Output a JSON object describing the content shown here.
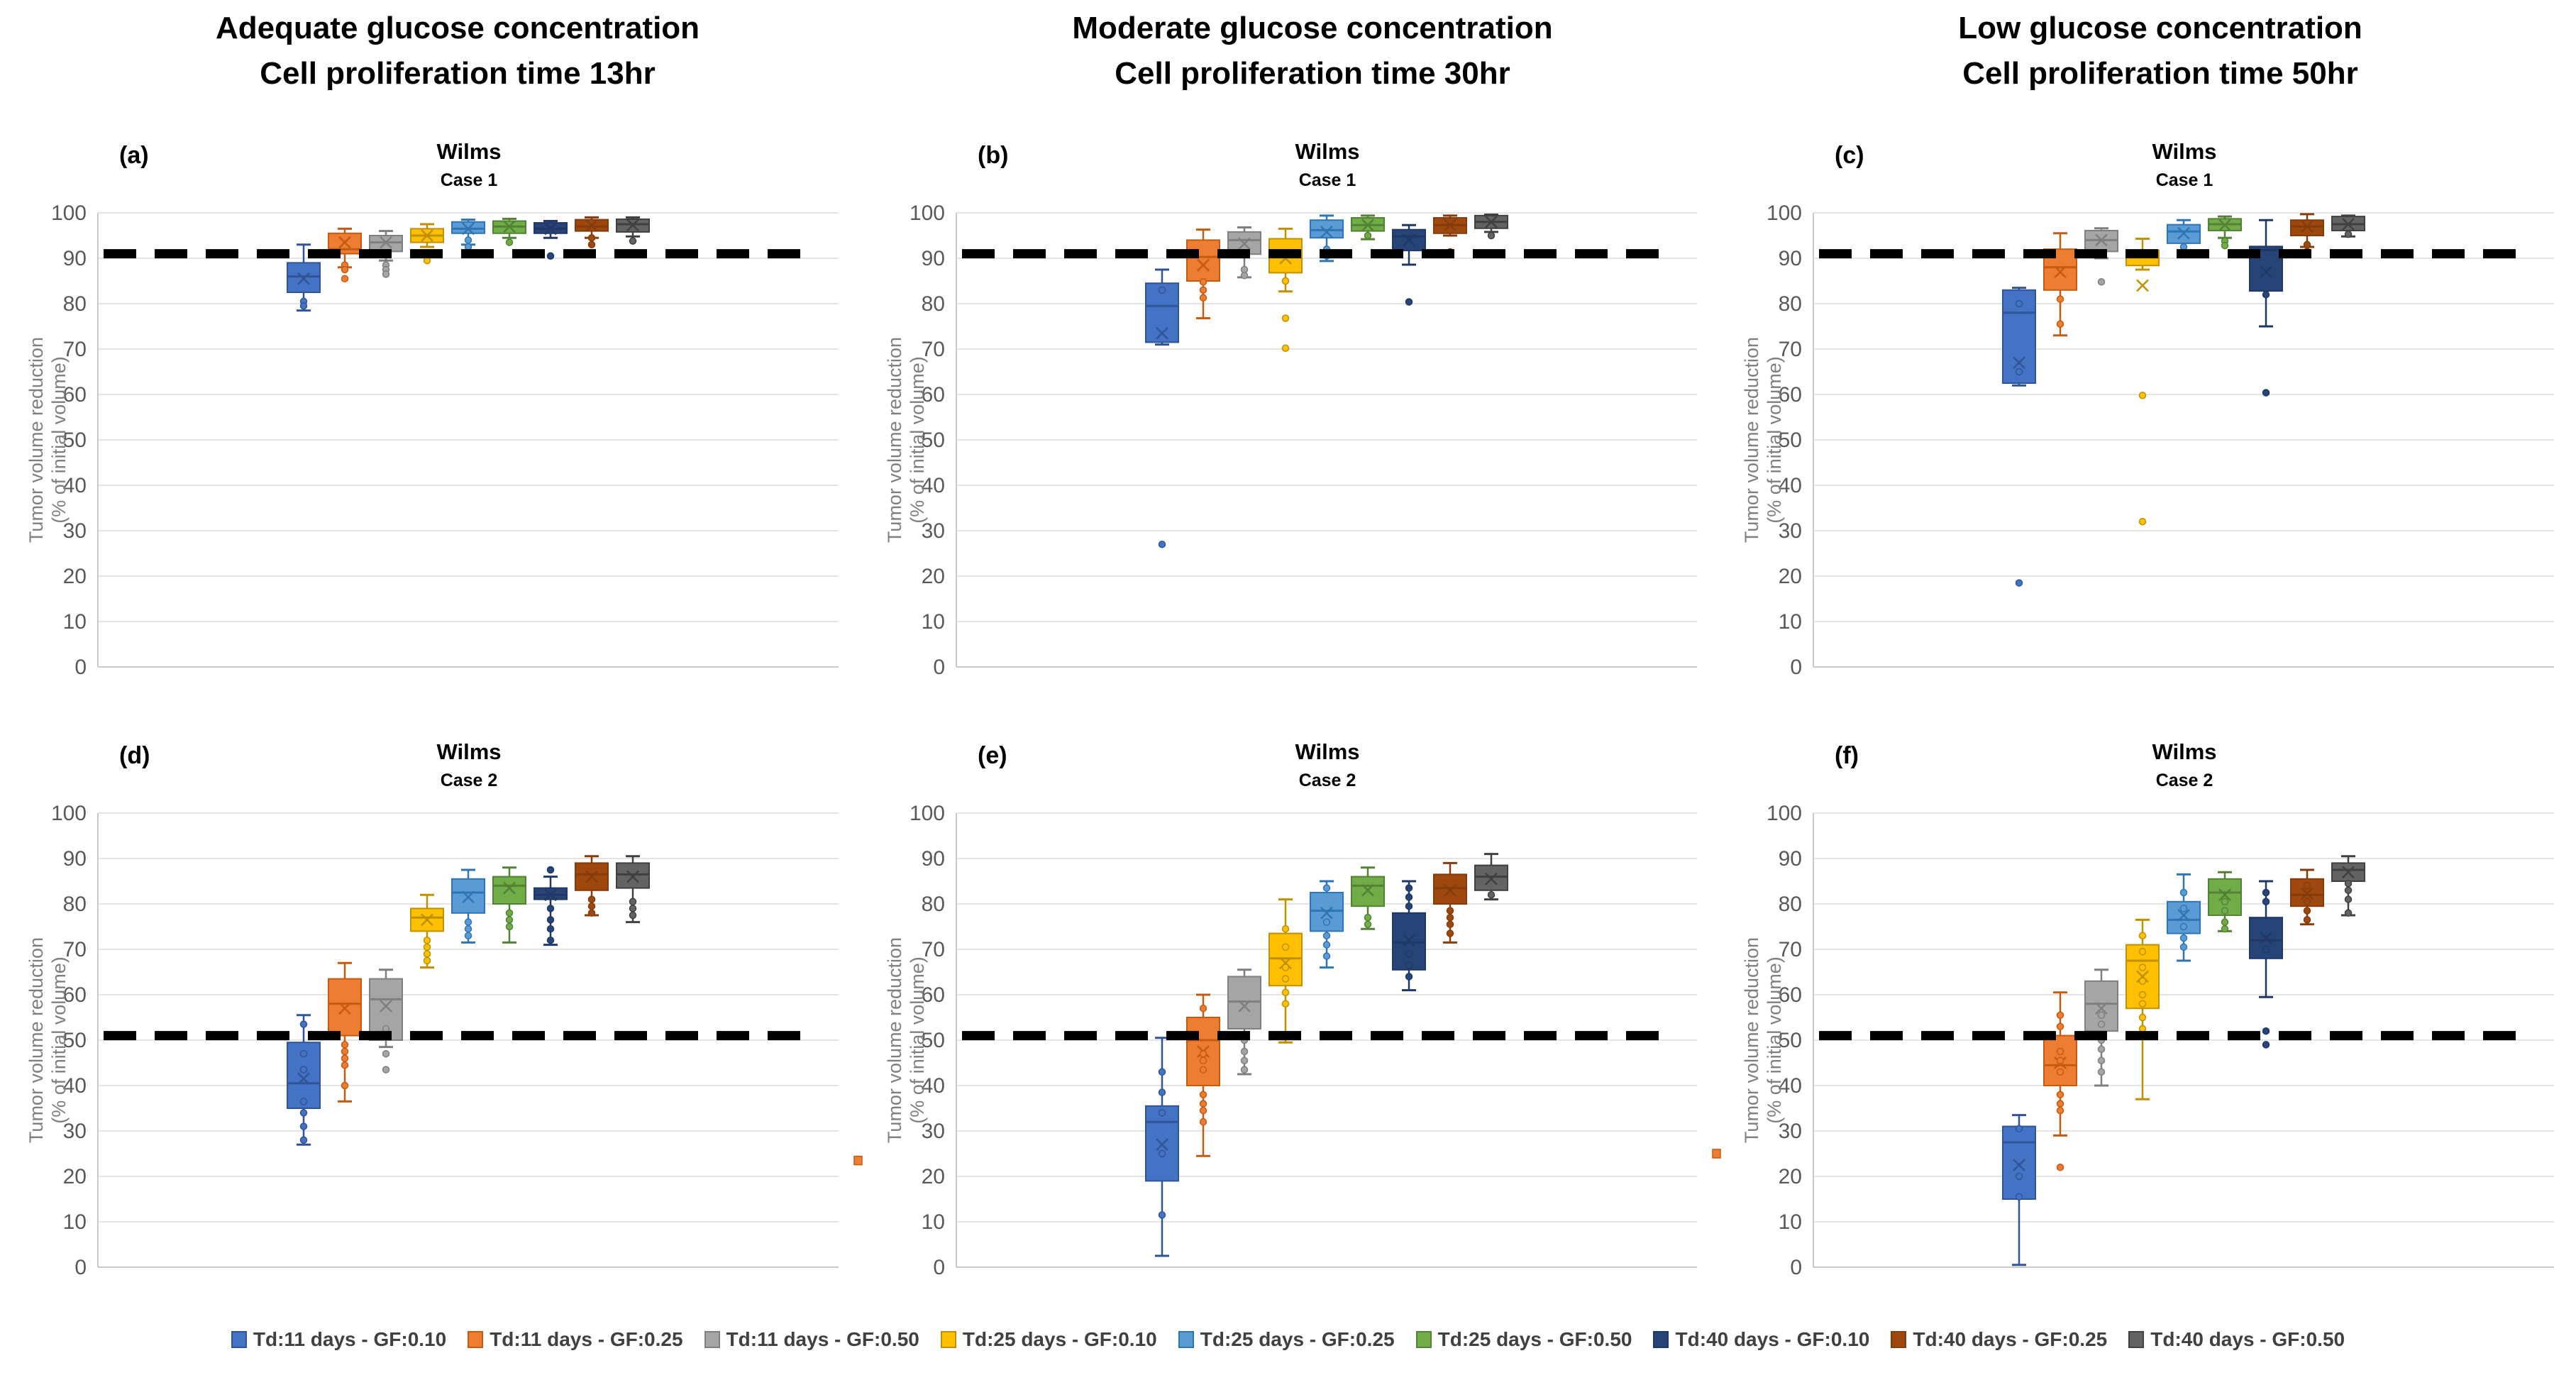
{
  "column_headers": [
    {
      "line1": "Adequate glucose concentration",
      "line2": "Cell proliferation time 13hr"
    },
    {
      "line1": "Moderate glucose concentration",
      "line2": "Cell proliferation time 30hr"
    },
    {
      "line1": "Low glucose concentration",
      "line2": "Cell proliferation time 50hr"
    }
  ],
  "axis": {
    "ylabel_line1": "Tumor volume reduction",
    "ylabel_line2": "(% of initial volume)",
    "ymin": 0,
    "ymax": 100,
    "ytick_step": 10
  },
  "series": [
    {
      "name": "Td:11 days - GF:0.10",
      "fill": "#4472C4",
      "border": "#2F5597"
    },
    {
      "name": "Td:11 days - GF:0.25",
      "fill": "#ED7D31",
      "border": "#C55A11"
    },
    {
      "name": "Td:11 days - GF:0.50",
      "fill": "#A5A5A5",
      "border": "#7F7F7F"
    },
    {
      "name": "Td:25 days - GF:0.10",
      "fill": "#FFC000",
      "border": "#BF9000"
    },
    {
      "name": "Td:25 days - GF:0.25",
      "fill": "#5B9BD5",
      "border": "#2E75B6"
    },
    {
      "name": "Td:25 days - GF:0.50",
      "fill": "#70AD47",
      "border": "#538135"
    },
    {
      "name": "Td:40 days - GF:0.10",
      "fill": "#264478",
      "border": "#1F3864"
    },
    {
      "name": "Td:40 days - GF:0.25",
      "fill": "#9E480E",
      "border": "#843C0C"
    },
    {
      "name": "Td:40 days - GF:0.50",
      "fill": "#636363",
      "border": "#404040"
    }
  ],
  "chart_data": {
    "type": "boxplot-grid",
    "grid": {
      "rows": 2,
      "cols": 3,
      "gridlines": true,
      "legend_position": "bottom"
    },
    "panels": [
      {
        "id": "a",
        "label": "(a)",
        "title": "Wilms",
        "subtitle": "Case 1",
        "threshold": 91,
        "stray_point": null,
        "boxes": [
          {
            "low": 78.5,
            "q1": 82.5,
            "median": 86,
            "q3": 89,
            "high": 93,
            "mean": 85.5,
            "points": [
              80.5,
              79.5
            ]
          },
          {
            "low": 88,
            "q1": 91,
            "median": 92,
            "q3": 95.5,
            "high": 96.5,
            "mean": 93.5,
            "points": [
              88.5,
              87.5,
              85.5
            ]
          },
          {
            "low": 89.5,
            "q1": 91.5,
            "median": 93.5,
            "q3": 95,
            "high": 96,
            "mean": 93.5,
            "points": [
              88.5,
              87.5,
              86.5
            ]
          },
          {
            "low": 92.5,
            "q1": 93.5,
            "median": 95,
            "q3": 96.5,
            "high": 97.5,
            "mean": 95,
            "points": [
              89.5
            ]
          },
          {
            "low": 93,
            "q1": 95.5,
            "median": 96.5,
            "q3": 98,
            "high": 98.5,
            "mean": 96.5,
            "points": [
              94,
              92.5
            ]
          },
          {
            "low": 94.5,
            "q1": 95.5,
            "median": 97,
            "q3": 98.2,
            "high": 98.7,
            "mean": 97,
            "points": [
              93.5
            ]
          },
          {
            "low": 94.5,
            "q1": 95.5,
            "median": 96.5,
            "q3": 97.8,
            "high": 98.2,
            "mean": 96.5,
            "points": [
              90.5
            ]
          },
          {
            "low": 94.5,
            "q1": 96,
            "median": 97,
            "q3": 98.5,
            "high": 99,
            "mean": 97.2,
            "points": [
              94.5,
              93
            ]
          },
          {
            "low": 94.8,
            "q1": 95.8,
            "median": 97.5,
            "q3": 98.6,
            "high": 99,
            "mean": 97.3,
            "points": [
              93.8
            ]
          }
        ]
      },
      {
        "id": "b",
        "label": "(b)",
        "title": "Wilms",
        "subtitle": "Case 1",
        "threshold": 91,
        "stray_point": null,
        "boxes": [
          {
            "low": 71,
            "q1": 71.5,
            "median": 79.5,
            "q3": 84.5,
            "high": 87.5,
            "mean": 73.5,
            "points": [
              83,
              27
            ]
          },
          {
            "low": 76.8,
            "q1": 85,
            "median": 90.3,
            "q3": 94,
            "high": 96.3,
            "mean": 88.5,
            "points": [
              84.8,
              83,
              81.3
            ]
          },
          {
            "low": 85.8,
            "q1": 90.9,
            "median": 94,
            "q3": 95.8,
            "high": 96.8,
            "mean": 93.2,
            "points": [
              87.5,
              86.2
            ]
          },
          {
            "low": 82.7,
            "q1": 86.8,
            "median": 90.6,
            "q3": 94.3,
            "high": 96.5,
            "mean": 90,
            "points": [
              85,
              76.8,
              70.2
            ]
          },
          {
            "low": 89.4,
            "q1": 94.5,
            "median": 96.2,
            "q3": 98.4,
            "high": 99.4,
            "mean": 95.8,
            "points": [
              92,
              90.5
            ]
          },
          {
            "low": 94.2,
            "q1": 96,
            "median": 97.3,
            "q3": 98.9,
            "high": 99.4,
            "mean": 97.3,
            "points": [
              95
            ]
          },
          {
            "low": 88.6,
            "q1": 91.7,
            "median": 94.8,
            "q3": 96.3,
            "high": 97.3,
            "mean": 94,
            "points": [
              80.4
            ]
          },
          {
            "low": 95,
            "q1": 95.5,
            "median": 97.3,
            "q3": 98.9,
            "high": 99.4,
            "mean": 97.3,
            "points": [
              91.4
            ]
          },
          {
            "low": 95.8,
            "q1": 96.6,
            "median": 98,
            "q3": 99.4,
            "high": 99.6,
            "mean": 98,
            "points": [
              95
            ]
          }
        ]
      },
      {
        "id": "c",
        "label": "(c)",
        "title": "Wilms",
        "subtitle": "Case 1",
        "threshold": 91,
        "stray_point": null,
        "boxes": [
          {
            "low": 62,
            "q1": 62.5,
            "median": 78,
            "q3": 83,
            "high": 83.5,
            "mean": 67,
            "points": [
              80,
              65,
              18.5
            ]
          },
          {
            "low": 73,
            "q1": 83,
            "median": 88,
            "q3": 92,
            "high": 95.5,
            "mean": 87,
            "points": [
              81,
              75.5
            ]
          },
          {
            "low": 90,
            "q1": 91.5,
            "median": 94,
            "q3": 96.1,
            "high": 96.6,
            "mean": 94,
            "points": [
              84.8
            ]
          },
          {
            "low": 87.5,
            "q1": 88.4,
            "median": 90.3,
            "q3": 91.8,
            "high": 94.3,
            "mean": 84,
            "points": [
              59.8,
              32
            ]
          },
          {
            "low": 91.5,
            "q1": 93.3,
            "median": 95.9,
            "q3": 97.4,
            "high": 98.4,
            "mean": 95.5,
            "points": [
              92.5
            ]
          },
          {
            "low": 94.5,
            "q1": 96.1,
            "median": 97.5,
            "q3": 98.7,
            "high": 99.2,
            "mean": 97.3,
            "points": [
              93.8,
              92.8
            ]
          },
          {
            "low": 75,
            "q1": 82.8,
            "median": 91.8,
            "q3": 92.6,
            "high": 98.4,
            "mean": 87,
            "points": [
              82,
              60.4
            ]
          },
          {
            "low": 92.5,
            "q1": 95,
            "median": 97,
            "q3": 98.4,
            "high": 99.7,
            "mean": 97,
            "points": [
              93,
              91.5
            ]
          },
          {
            "low": 94.8,
            "q1": 96.1,
            "median": 97.5,
            "q3": 99.2,
            "high": 99.4,
            "mean": 97.5,
            "points": [
              95.3
            ]
          }
        ]
      },
      {
        "id": "d",
        "label": "(d)",
        "title": "Wilms",
        "subtitle": "Case 2",
        "threshold": 51,
        "stray_point": 23.5,
        "boxes": [
          {
            "low": 27,
            "q1": 35,
            "median": 40.5,
            "q3": 49.5,
            "high": 55.5,
            "mean": 41.5,
            "points": [
              53.5,
              47,
              43.5,
              36.5,
              34,
              31,
              28
            ]
          },
          {
            "low": 36.5,
            "q1": 51,
            "median": 58,
            "q3": 63.5,
            "high": 67,
            "mean": 57,
            "points": [
              49,
              47.5,
              46,
              44.5,
              40
            ]
          },
          {
            "low": 48.5,
            "q1": 50,
            "median": 59,
            "q3": 63.5,
            "high": 65.5,
            "mean": 57.5,
            "points": [
              52.5,
              47,
              43.5
            ]
          },
          {
            "low": 66,
            "q1": 74,
            "median": 77,
            "q3": 79,
            "high": 82,
            "mean": 76.5,
            "points": [
              72,
              70.5,
              69,
              67.5
            ]
          },
          {
            "low": 71.5,
            "q1": 78,
            "median": 82.5,
            "q3": 85.5,
            "high": 87.5,
            "mean": 81.5,
            "points": [
              76,
              74.5,
              73
            ]
          },
          {
            "low": 71.5,
            "q1": 80,
            "median": 84,
            "q3": 86,
            "high": 88,
            "mean": 83.5,
            "points": [
              78,
              76.5,
              75
            ]
          },
          {
            "low": 71,
            "q1": 81,
            "median": 82,
            "q3": 83.5,
            "high": 86,
            "mean": 82,
            "points": [
              87.5,
              79,
              76.5,
              74.5,
              72
            ]
          },
          {
            "low": 77.5,
            "q1": 83,
            "median": 86.5,
            "q3": 89,
            "high": 90.5,
            "mean": 86,
            "points": [
              81,
              79.5,
              78
            ]
          },
          {
            "low": 76,
            "q1": 83.5,
            "median": 86.5,
            "q3": 89,
            "high": 90.5,
            "mean": 86,
            "points": [
              80.5,
              79,
              77.5
            ]
          }
        ]
      },
      {
        "id": "e",
        "label": "(e)",
        "title": "Wilms",
        "subtitle": "Case 2",
        "threshold": 51,
        "stray_point": 25,
        "boxes": [
          {
            "low": 2.5,
            "q1": 19,
            "median": 32,
            "q3": 35.5,
            "high": 50.5,
            "mean": 27,
            "points": [
              43,
              38.5,
              34,
              25,
              11.5
            ]
          },
          {
            "low": 24.5,
            "q1": 40,
            "median": 50,
            "q3": 55,
            "high": 60,
            "mean": 47.5,
            "points": [
              57,
              47,
              45.5,
              43.5,
              38,
              36,
              34.5,
              32
            ]
          },
          {
            "low": 42.5,
            "q1": 52.5,
            "median": 58.5,
            "q3": 64,
            "high": 65.5,
            "mean": 57.5,
            "points": [
              50,
              47.5,
              45.5,
              43.5
            ]
          },
          {
            "low": 49.5,
            "q1": 62,
            "median": 68,
            "q3": 73.5,
            "high": 81,
            "mean": 67,
            "points": [
              74.5,
              70.5,
              66,
              63.5,
              60.5,
              58
            ]
          },
          {
            "low": 66,
            "q1": 74,
            "median": 78.5,
            "q3": 82.5,
            "high": 85,
            "mean": 78,
            "points": [
              83.5,
              76,
              73,
              71,
              68.5
            ]
          },
          {
            "low": 74.5,
            "q1": 79.5,
            "median": 84,
            "q3": 86,
            "high": 88,
            "mean": 83,
            "points": [
              77,
              75.5
            ]
          },
          {
            "low": 61,
            "q1": 65.5,
            "median": 71.5,
            "q3": 78,
            "high": 85,
            "mean": 72,
            "points": [
              83.5,
              81.5,
              79.5,
              69,
              66.5,
              64
            ]
          },
          {
            "low": 71.5,
            "q1": 80,
            "median": 83.5,
            "q3": 86.5,
            "high": 89,
            "mean": 83,
            "points": [
              78.5,
              77,
              75.5,
              73.5
            ]
          },
          {
            "low": 81,
            "q1": 83,
            "median": 86,
            "q3": 88.5,
            "high": 91,
            "mean": 85.5,
            "points": [
              82
            ]
          }
        ]
      },
      {
        "id": "f",
        "label": "(f)",
        "title": "Wilms",
        "subtitle": "Case 2",
        "threshold": 51,
        "stray_point": null,
        "boxes": [
          {
            "low": 0.5,
            "q1": 15,
            "median": 27.5,
            "q3": 31,
            "high": 33.5,
            "mean": 22.5,
            "points": [
              30.5,
              20,
              15.5
            ]
          },
          {
            "low": 29,
            "q1": 40,
            "median": 44.5,
            "q3": 51,
            "high": 60.5,
            "mean": 45,
            "points": [
              55.5,
              53,
              47.5,
              45.5,
              43,
              38,
              36,
              34.5,
              22
            ]
          },
          {
            "low": 40,
            "q1": 52,
            "median": 58,
            "q3": 63,
            "high": 65.5,
            "mean": 57,
            "points": [
              55.5,
              53.5,
              50,
              48,
              45.5,
              43
            ]
          },
          {
            "low": 37,
            "q1": 57,
            "median": 67.5,
            "q3": 71,
            "high": 76.5,
            "mean": 64,
            "points": [
              73,
              69.5,
              66,
              63,
              60,
              58,
              55,
              52.5
            ]
          },
          {
            "low": 67.5,
            "q1": 73.5,
            "median": 76.5,
            "q3": 80.5,
            "high": 86.5,
            "mean": 77.5,
            "points": [
              82.5,
              79,
              75,
              72.5,
              70.5
            ]
          },
          {
            "low": 74,
            "q1": 77.5,
            "median": 82.5,
            "q3": 85.5,
            "high": 87,
            "mean": 82,
            "points": [
              80.5,
              78.5,
              76,
              74.5
            ]
          },
          {
            "low": 59.5,
            "q1": 68,
            "median": 72,
            "q3": 77,
            "high": 85,
            "mean": 72.5,
            "points": [
              82.5,
              80.5,
              70,
              52,
              49
            ]
          },
          {
            "low": 75.5,
            "q1": 79.5,
            "median": 82,
            "q3": 85.5,
            "high": 87.5,
            "mean": 82.3,
            "points": [
              84,
              80.5,
              78.5,
              76.5
            ]
          },
          {
            "low": 77.5,
            "q1": 85,
            "median": 87.5,
            "q3": 89,
            "high": 90.5,
            "mean": 87,
            "points": [
              84.5,
              83,
              81,
              78
            ]
          }
        ]
      }
    ]
  }
}
